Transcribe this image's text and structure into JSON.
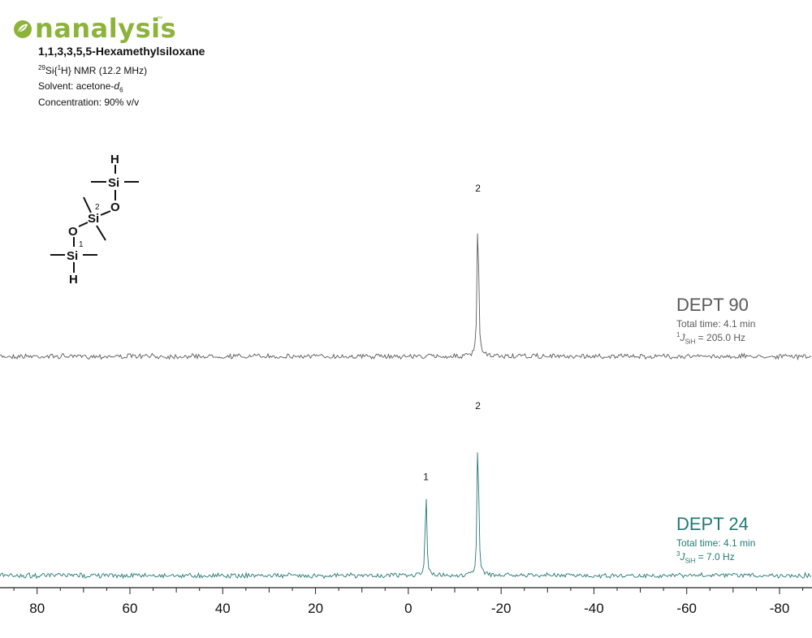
{
  "brand": {
    "name": "nanalysis",
    "tm": "™",
    "icon": "leaf-circle-icon",
    "color": "#8cb33a"
  },
  "header": {
    "compound": "1,1,3,3,5,5-Hexamethylsiloxane",
    "nmr_sup": "29",
    "nmr_a": "Si{",
    "nmr_sup2": "1",
    "nmr_b": "H} NMR (12.2 MHz)",
    "solvent_label": "Solvent: acetone-",
    "solvent_italic": "d",
    "solvent_sub": "6",
    "concentration": "Concentration: 90% v/v"
  },
  "structure": {
    "atoms": [
      "H",
      "Si",
      "O",
      "Si",
      "O",
      "Si",
      "H"
    ],
    "labels": [
      "2",
      "1"
    ]
  },
  "chart_data": {
    "type": "line",
    "title": "",
    "xlabel": "",
    "ylabel": "",
    "x_axis_reversed": true,
    "xlim": [
      88,
      -87
    ],
    "x_ticks": [
      80,
      60,
      40,
      20,
      0,
      -20,
      -40,
      -60,
      -80
    ],
    "grid": false,
    "series": [
      {
        "name": "DEPT 90",
        "color": "#5a5a5a",
        "total_time": "Total time: 4.1 min",
        "j_sup": "1",
        "j_sub": "SiH",
        "j_value": " = 205.0 Hz",
        "peaks": [
          {
            "label": "2",
            "ppm": -15.0,
            "rel_height": 1.0
          }
        ]
      },
      {
        "name": "DEPT 24",
        "color": "#237a73",
        "total_time": "Total time: 4.1 min",
        "j_sup": "3",
        "j_sub": "SiH",
        "j_value": " = 7.0 Hz",
        "peaks": [
          {
            "label": "1",
            "ppm": -3.8,
            "rel_height": 0.56
          },
          {
            "label": "2",
            "ppm": -15.0,
            "rel_height": 1.0
          }
        ]
      }
    ]
  }
}
